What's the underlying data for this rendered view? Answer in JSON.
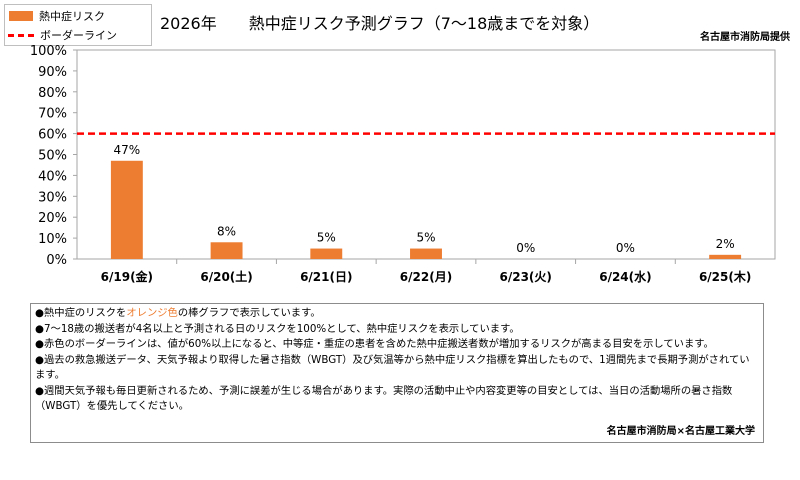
{
  "title": "2026年　　熱中症リスク予測グラフ（7〜18歳までを対象）",
  "provider": "名古屋市消防局提供",
  "colors": {
    "bar": "#ed7d31",
    "border_line": "#ff0000",
    "highlight_text": "#ed7d31"
  },
  "legend": [
    {
      "label": "熱中症リスク",
      "kind": "bar",
      "color": "#ed7d31"
    },
    {
      "label": "ボーダーライン",
      "kind": "dashed-line",
      "color": "#ff0000"
    }
  ],
  "chart_data": {
    "type": "bar",
    "categories": [
      "6/19(金)",
      "6/20(土)",
      "6/21(日)",
      "6/22(月)",
      "6/23(火)",
      "6/24(水)",
      "6/25(木)"
    ],
    "values": [
      47,
      8,
      5,
      5,
      0,
      0,
      2
    ],
    "value_labels": [
      "47%",
      "8%",
      "5%",
      "5%",
      "0%",
      "0%",
      "2%"
    ],
    "ylim": [
      0,
      100
    ],
    "yticks": [
      "0%",
      "10%",
      "20%",
      "30%",
      "40%",
      "50%",
      "60%",
      "70%",
      "80%",
      "90%",
      "100%"
    ],
    "border_line": 60,
    "legend_position": "top-left",
    "grid": false
  },
  "notes": {
    "line1_pre": "●熱中症のリスクを",
    "line1_hl": "オレンジ色",
    "line1_post": "の棒グラフで表示しています。",
    "line2": "●7〜18歳の搬送者が4名以上と予測される日のリスクを100%として、熱中症リスクを表示しています。",
    "line3": "●赤色のボーダーラインは、値が60%以上になると、中等症・重症の患者を含めた熱中症搬送者数が増加するリスクが高まる目安を示しています。",
    "line4": "●過去の救急搬送データ、天気予報より取得した暑さ指数（WBGT）及び気温等から熱中症リスク指標を算出したもので、1週間先まで長期予測がされています。",
    "line5": "●週間天気予報も毎日更新されるため、予測に誤差が生じる場合があります。実際の活動中止や内容変更等の目安としては、当日の活動場所の暑さ指数（WBGT）を優先してください。"
  },
  "footer": "名古屋市消防局×名古屋工業大学"
}
